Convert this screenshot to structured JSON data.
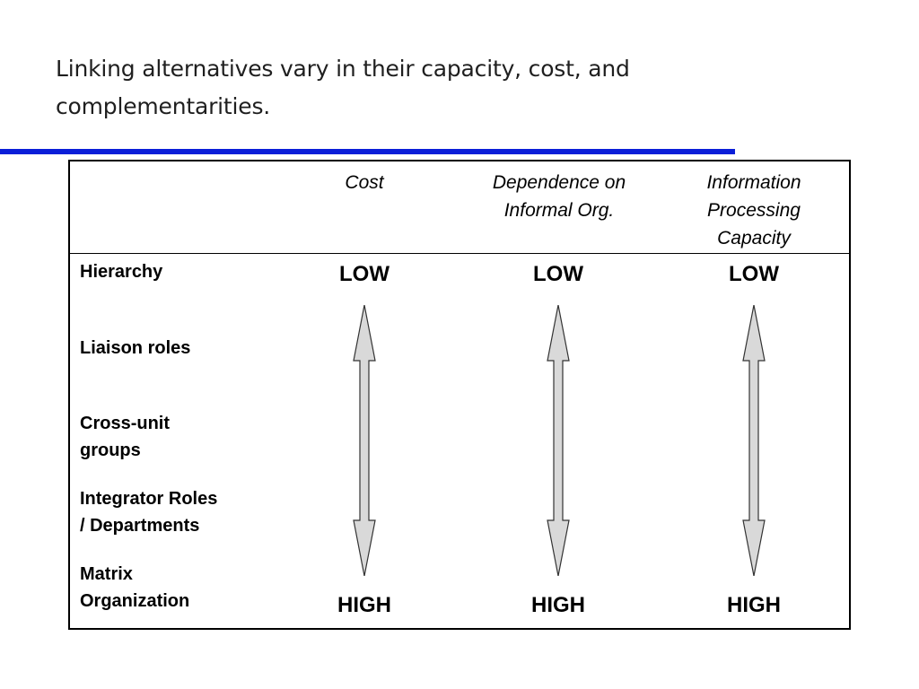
{
  "slide": {
    "title": "Linking alternatives vary in their capacity, cost, and complementarities.",
    "rule_color": "#0a1ed8"
  },
  "table": {
    "columns": [
      {
        "header_lines": [
          "Cost"
        ],
        "top": "LOW",
        "bottom": "HIGH"
      },
      {
        "header_lines": [
          "Dependence on",
          "Informal Org."
        ],
        "top": "LOW",
        "bottom": "HIGH"
      },
      {
        "header_lines": [
          "Information",
          "Processing",
          "Capacity"
        ],
        "top": "LOW",
        "bottom": "HIGH"
      }
    ],
    "rows": [
      {
        "lines": [
          "Hierarchy"
        ]
      },
      {
        "lines": [
          "Liaison roles"
        ]
      },
      {
        "lines": [
          "Cross-unit",
          "groups"
        ]
      },
      {
        "lines": [
          "Integrator Roles",
          "/ Departments"
        ]
      },
      {
        "lines": [
          "Matrix",
          "Organization"
        ]
      }
    ],
    "arrow": {
      "fill": "#d9d9d9",
      "stroke": "#333333",
      "direction": "double-headed, low-to-high"
    }
  }
}
